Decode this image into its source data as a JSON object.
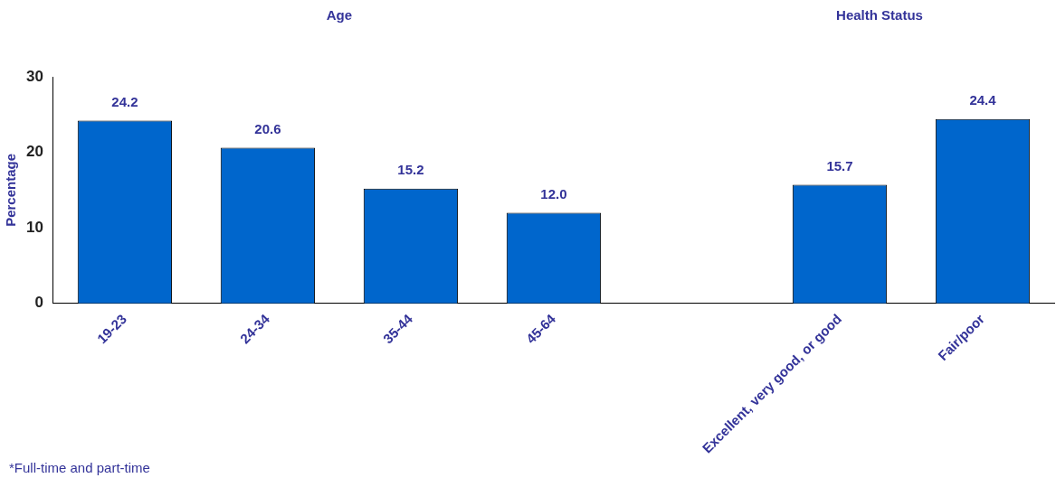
{
  "chart_data": {
    "type": "bar",
    "ylabel": "Percentage",
    "categories": [
      "19-23",
      "24-34",
      "35-44",
      "45-64",
      null,
      "Excellent, very good, or good",
      "Fair/poor"
    ],
    "values": [
      24.2,
      20.6,
      15.2,
      12.0,
      null,
      15.7,
      24.4
    ],
    "color": "#0066cc",
    "ylim": [
      0,
      30
    ],
    "yticks": [
      0,
      10,
      20,
      30
    ],
    "grid": false,
    "legend": false,
    "value_labels": [
      "24.2",
      "20.6",
      "15.2",
      "12.0",
      null,
      "15.7",
      "24.4"
    ],
    "annotations": [
      "Age",
      "Health Status",
      "*Full-time and part-time"
    ]
  }
}
